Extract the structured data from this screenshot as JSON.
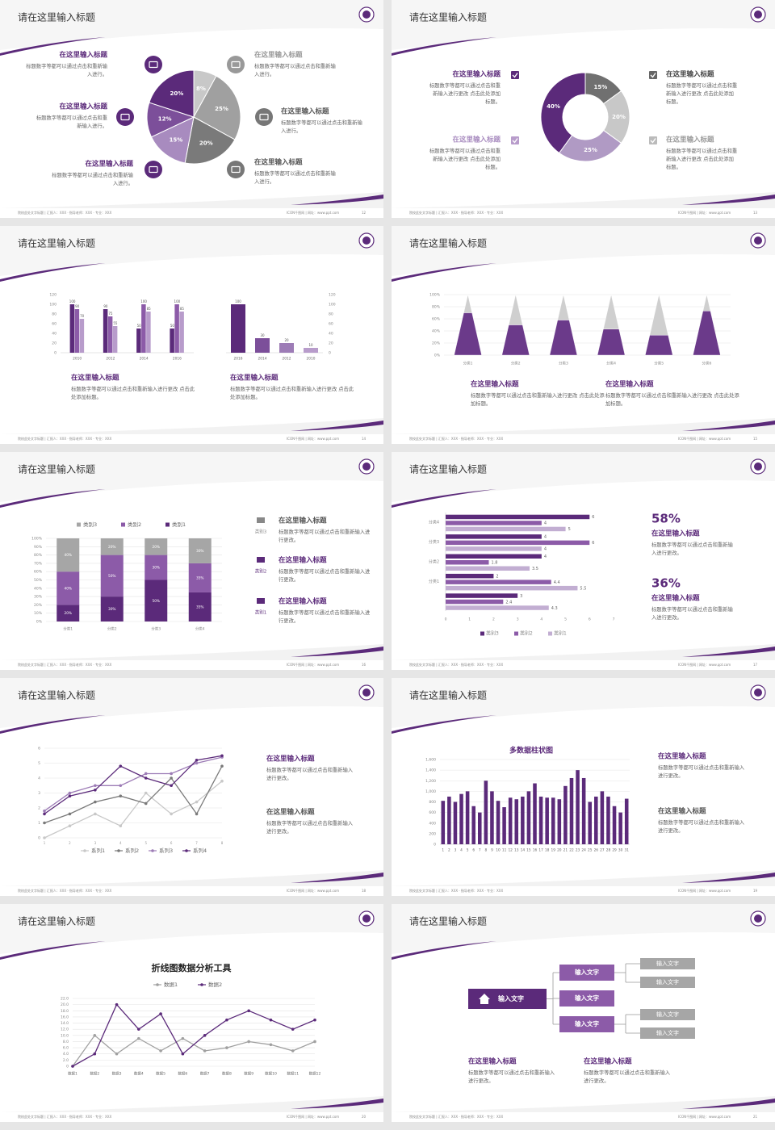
{
  "footer": {
    "left": "院校此处文字标题 | 汇报人：XXX · 指导老师：XXX · 专业：XXX",
    "right": "ICON千图网 | 网址：www.ppt.com"
  },
  "slides": [
    {
      "title": "请在这里输入标题",
      "page": "12",
      "blocks": [
        {
          "heading": "在这里输入标题",
          "body": "标题数字等都可以通过点击和重新输入进行。"
        },
        {
          "heading": "在这里输入标题",
          "body": "标题数字等都可以通过点击和重新输入进行。"
        },
        {
          "heading": "在这里输入标题",
          "body": "标题数字等都可以通过点击和重新输入进行。"
        },
        {
          "heading": "在这里输入标题",
          "body": "标题数字等都可以通过点击和重新输入进行。"
        },
        {
          "heading": "在这里输入标题",
          "body": "标题数字等都可以通过点击和重新输入进行。"
        },
        {
          "heading": "在这里输入标题",
          "body": "标题数字等都可以通过点击和重新输入进行。"
        }
      ]
    },
    {
      "title": "请在这里输入标题",
      "page": "13",
      "blocks": [
        {
          "heading": "在这里输入标题",
          "body": "标题数字等都可以通过点击和重新输入进行更改 点击此处添加标题。"
        },
        {
          "heading": "在这里输入标题",
          "body": "标题数字等都可以通过点击和重新输入进行更改 点击此处添加标题。"
        },
        {
          "heading": "在这里输入标题",
          "body": "标题数字等都可以通过点击和重新输入进行更改 点击此处添加标题。"
        },
        {
          "heading": "在这里输入标题",
          "body": "标题数字等都可以通过点击和重新输入进行更改 点击此处添加标题。"
        }
      ]
    },
    {
      "title": "请在这里输入标题",
      "page": "14",
      "blocks": [
        {
          "heading": "在这里输入标题",
          "body": "标题数字等都可以通过点击和重新输入进行更改 点击此处添加标题。"
        },
        {
          "heading": "在这里输入标题",
          "body": "标题数字等都可以通过点击和重新输入进行更改 点击此处添加标题。"
        }
      ]
    },
    {
      "title": "请在这里输入标题",
      "page": "15",
      "blocks": [
        {
          "heading": "在这里输入标题",
          "body": "标题数字等都可以通过点击和重新输入进行更改 点击此处添加标题。"
        },
        {
          "heading": "在这里输入标题",
          "body": "标题数字等都可以通过点击和重新输入进行更改 点击此处添加标题。"
        }
      ]
    },
    {
      "title": "请在这里输入标题",
      "page": "16",
      "blocks": [
        {
          "tag": "类别3",
          "heading": "在这里输入标题",
          "body": "标题数字等都可以通过点击和重新输入进行更改。"
        },
        {
          "tag": "类别2",
          "heading": "在这里输入标题",
          "body": "标题数字等都可以通过点击和重新输入进行更改。"
        },
        {
          "tag": "类别1",
          "heading": "在这里输入标题",
          "body": "标题数字等都可以通过点击和重新输入进行更改。"
        }
      ]
    },
    {
      "title": "请在这里输入标题",
      "page": "17",
      "blocks": [
        {
          "stat": "58%",
          "heading": "在这里输入标题",
          "body": "标题数字等都可以通过点击和重新输入进行更改。"
        },
        {
          "stat": "36%",
          "heading": "在这里输入标题",
          "body": "标题数字等都可以通过点击和重新输入进行更改。"
        }
      ]
    },
    {
      "title": "请在这里输入标题",
      "page": "18",
      "blocks": [
        {
          "heading": "在这里输入标题",
          "body": "标题数字等都可以通过点击和重新输入进行更改。"
        },
        {
          "heading": "在这里输入标题",
          "body": "标题数字等都可以通过点击和重新输入进行更改。"
        }
      ]
    },
    {
      "title": "请在这里输入标题",
      "page": "19",
      "blocks": [
        {
          "heading": "在这里输入标题",
          "body": "标题数字等都可以通过点击和重新输入进行更改。"
        },
        {
          "heading": "在这里输入标题",
          "body": "标题数字等都可以通过点击和重新输入进行更改。"
        }
      ]
    },
    {
      "title": "请在这里输入标题",
      "page": "20",
      "blocks": []
    },
    {
      "title": "请在这里输入标题",
      "page": "21",
      "blocks": [
        {
          "heading": "在这里输入标题",
          "body": "标题数字等都可以通过点击和重新输入进行更改。"
        },
        {
          "heading": "在这里输入标题",
          "body": "标题数字等都可以通过点击和重新输入进行更改。"
        }
      ],
      "diagram": {
        "root": "输入文字",
        "branches": [
          "输入文字",
          "输入文字",
          "输入文字"
        ],
        "leaves": [
          "输入文字",
          "输入文字",
          "输入文字",
          "输入文字"
        ]
      }
    }
  ],
  "chart_data": [
    {
      "type": "pie",
      "values": [
        8,
        25,
        20,
        15,
        12,
        20
      ],
      "value_labels": [
        "8%",
        "25%",
        "20%",
        "15%",
        "12%",
        "20%"
      ],
      "colors": [
        "#c8c8c8",
        "#a0a0a0",
        "#7a7a7a",
        "#a88bbf",
        "#7c4f9a",
        "#5b2a7a"
      ]
    },
    {
      "type": "donut",
      "values": [
        15,
        20,
        25,
        40
      ],
      "value_labels": [
        "15%",
        "20%",
        "25%",
        "40%"
      ],
      "colors": [
        "#707070",
        "#c8c8c8",
        "#b09ac4",
        "#5b2a7a"
      ]
    },
    {
      "type": "bar",
      "categories": [
        "2010",
        "2012",
        "2014",
        "2016"
      ],
      "series": [
        {
          "color": "#5b2a7a",
          "values": [
            100,
            90,
            50,
            50
          ]
        },
        {
          "color": "#8c5ba8",
          "values": [
            90,
            75,
            100,
            100
          ]
        },
        {
          "color": "#b89ccb",
          "values": [
            70,
            55,
            85,
            85
          ]
        }
      ],
      "ylim": [
        0,
        120
      ],
      "yticks": [
        0,
        20,
        40,
        60,
        80,
        100,
        120
      ],
      "y_axis": "left"
    },
    {
      "type": "bar",
      "categories": [
        "2016",
        "2014",
        "2012",
        "2010"
      ],
      "values": [
        100,
        30,
        20,
        10
      ],
      "colors": [
        "#5b2a7a",
        "#7c4f9a",
        "#9d7cb6",
        "#b89ccb"
      ],
      "ylim": [
        0,
        120
      ],
      "yticks": [
        0,
        20,
        40,
        60,
        80,
        100,
        120
      ],
      "y_axis": "right"
    },
    {
      "type": "pyramid",
      "categories": [
        "分类1",
        "分类2",
        "分类3",
        "分类4",
        "分类5",
        "分类6"
      ],
      "series": [
        {
          "color": "#6b3a8a",
          "values": [
            70,
            50,
            58,
            43,
            33,
            73
          ]
        },
        {
          "color": "#cfcfcf",
          "values": [
            30,
            50,
            42,
            57,
            67,
            27
          ]
        }
      ],
      "ylim": [
        0,
        100
      ],
      "yticks": [
        {
          "value": 0,
          "label": "0%"
        },
        {
          "value": 20,
          "label": "20%"
        },
        {
          "value": 40,
          "label": "40%"
        },
        {
          "value": 60,
          "label": "60%"
        },
        {
          "value": 80,
          "label": "80%"
        },
        {
          "value": 100,
          "label": "100%"
        }
      ],
      "grid": true
    },
    {
      "type": "stacked_bar",
      "categories": [
        "分类1",
        "分类2",
        "分类3",
        "分类4"
      ],
      "series": [
        {
          "name": "类别1",
          "color": "#5b2a7a",
          "values": [
            20,
            30,
            50,
            35
          ],
          "value_labels": [
            "20%",
            "30%",
            "50%",
            "35%"
          ]
        },
        {
          "name": "类别2",
          "color": "#8c5ba8",
          "values": [
            40,
            50,
            30,
            35
          ],
          "value_labels": [
            "40%",
            "50%",
            "30%",
            "35%"
          ]
        },
        {
          "name": "类别3",
          "color": "#a6a6a6",
          "values": [
            40,
            20,
            20,
            30
          ],
          "value_labels": [
            "40%",
            "20%",
            "20%",
            "30%"
          ]
        }
      ],
      "ylim": [
        0,
        100
      ],
      "yticks": [
        {
          "value": 0,
          "label": "0%"
        },
        {
          "value": 10,
          "label": "10%"
        },
        {
          "value": 20,
          "label": "20%"
        },
        {
          "value": 30,
          "label": "30%"
        },
        {
          "value": 40,
          "label": "40%"
        },
        {
          "value": 50,
          "label": "50%"
        },
        {
          "value": 60,
          "label": "60%"
        },
        {
          "value": 70,
          "label": "70%"
        },
        {
          "value": 80,
          "label": "80%"
        },
        {
          "value": 90,
          "label": "90%"
        },
        {
          "value": 100,
          "label": "100%"
        }
      ],
      "grid": true
    },
    {
      "type": "hbar",
      "categories": [
        null,
        "分类1",
        "分类2",
        "分类3",
        "分类4"
      ],
      "series": [
        {
          "name": "类别3",
          "color": "#5b2a7a",
          "values": [
            3,
            2,
            4,
            4,
            6
          ]
        },
        {
          "name": "类别2",
          "color": "#8c5ba8",
          "values": [
            2.4,
            4.4,
            1.8,
            6,
            4
          ]
        },
        {
          "name": "类别1",
          "color": "#c2aed2",
          "values": [
            4.3,
            5.5,
            3.5,
            4,
            5
          ]
        }
      ],
      "xlim": [
        0,
        7
      ],
      "xticks": [
        0,
        1,
        2,
        3,
        4,
        5,
        6,
        7
      ]
    },
    {
      "type": "line",
      "x": [
        1,
        2,
        3,
        4,
        5,
        6,
        7,
        8
      ],
      "series": [
        {
          "name": "系列1",
          "color": "#c8c8c8",
          "values": [
            0,
            0.8,
            1.6,
            0.8,
            3,
            1.6,
            2.4,
            3.8
          ]
        },
        {
          "name": "系列2",
          "color": "#7a7a7a",
          "values": [
            1,
            1.6,
            2.4,
            2.8,
            2.3,
            4,
            1.6,
            4.8
          ]
        },
        {
          "name": "系列3",
          "color": "#9d7cb6",
          "values": [
            1.8,
            3,
            3.5,
            3.5,
            4.3,
            4.3,
            5,
            5.4
          ]
        },
        {
          "name": "系列4",
          "color": "#5b2a7a",
          "values": [
            1.6,
            2.8,
            3.2,
            4.8,
            4,
            3.5,
            5.2,
            5.5
          ]
        }
      ],
      "xlim": [
        1,
        8
      ],
      "xticks": [
        1,
        2,
        3,
        4,
        5,
        6,
        7,
        8
      ],
      "ylim": [
        0,
        6
      ],
      "yticks": [
        0,
        1,
        2,
        3,
        4,
        5,
        6
      ],
      "grid": true
    },
    {
      "type": "bar",
      "title": "多数据柱状图",
      "categories": [
        "1",
        "2",
        "3",
        "4",
        "5",
        "6",
        "7",
        "8",
        "9",
        "10",
        "11",
        "12",
        "13",
        "14",
        "15",
        "16",
        "17",
        "18",
        "19",
        "20",
        "21",
        "22",
        "23",
        "24",
        "25",
        "26",
        "27",
        "28",
        "29",
        "30",
        "31"
      ],
      "values": [
        820,
        900,
        800,
        950,
        1000,
        720,
        600,
        1200,
        1000,
        820,
        700,
        880,
        850,
        900,
        1000,
        1150,
        900,
        880,
        880,
        850,
        1100,
        1250,
        1400,
        1250,
        800,
        900,
        1000,
        900,
        720,
        600,
        860
      ],
      "color": "#5b2a7a",
      "ylim": [
        0,
        1600
      ],
      "yticks": [
        0,
        200,
        400,
        600,
        800,
        {
          "value": 1000,
          "label": "1,000"
        },
        {
          "value": 1200,
          "label": "1,200"
        },
        {
          "value": 1400,
          "label": "1,400"
        },
        {
          "value": 1600,
          "label": "1,600"
        }
      ],
      "grid": true,
      "y_axis": "left"
    },
    {
      "type": "line",
      "title": "折线图数据分析工具",
      "categories": [
        "数据1",
        "数据2",
        "数据3",
        "数据4",
        "数据5",
        "数据6",
        "数据7",
        "数据8",
        "数据9",
        "数据10",
        "数据11",
        "数据12"
      ],
      "series": [
        {
          "name": "数据1",
          "color": "#a0a0a0",
          "values": [
            0,
            10,
            4,
            9,
            5,
            9,
            5,
            6,
            8,
            7,
            5,
            8
          ]
        },
        {
          "name": "数据2",
          "color": "#5b2a7a",
          "values": [
            0,
            4,
            20,
            12,
            17,
            4,
            10,
            15,
            18,
            15,
            12,
            15
          ]
        }
      ],
      "ylim": [
        0,
        22
      ],
      "yticks": [
        0,
        {
          "value": 2,
          "label": "2.0"
        },
        {
          "value": 4,
          "label": "4.0"
        },
        {
          "value": 6,
          "label": "6.0"
        },
        {
          "value": 8,
          "label": "8.0"
        },
        {
          "value": 10,
          "label": "10.0"
        },
        {
          "value": 12,
          "label": "12.0"
        },
        {
          "value": 14,
          "label": "14.0"
        },
        {
          "value": 16,
          "label": "16.0"
        },
        {
          "value": 18,
          "label": "18.0"
        },
        {
          "value": 20,
          "label": "20.0"
        },
        {
          "value": 22,
          "label": "22.0"
        }
      ],
      "grid": true
    }
  ]
}
